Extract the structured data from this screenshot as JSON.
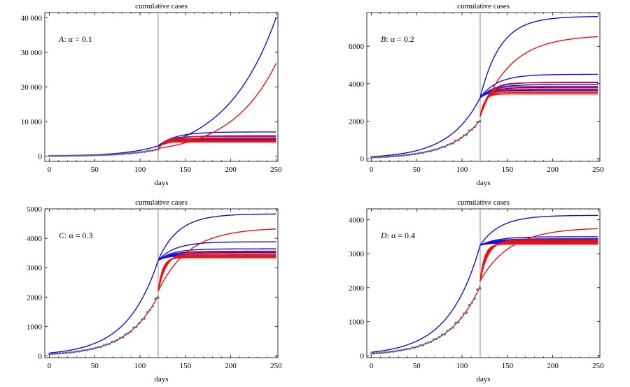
{
  "chart_data": [
    {
      "type": "line",
      "title": "cumulative cases",
      "xlabel": "days",
      "ylabel": "",
      "panel_letter": "A",
      "param_label": ":   α = 0.1",
      "xlim": [
        -5,
        252
      ],
      "ylim": [
        -1500,
        41500
      ],
      "xticks": [
        0,
        50,
        100,
        150,
        200,
        250
      ],
      "yticks": [
        0,
        10000,
        20000,
        30000,
        40000
      ],
      "ytick_labels": [
        "0",
        "10 000",
        "20 000",
        "30 000",
        "40 000"
      ],
      "vertical_line_x": 120,
      "colors": {
        "blue": "#1010dd",
        "red": "#ee1111",
        "points": "#5a6a9a",
        "vline": "#888888"
      },
      "fit_max": 2000,
      "ic_blue": 3000,
      "ic_red": 2250,
      "blue_finals": [
        40000,
        7000,
        5900,
        5300,
        4900,
        4600,
        4400
      ],
      "red_finals": [
        26800,
        5700,
        5100,
        4700,
        4400,
        4200,
        4100
      ],
      "blue_growth": "exp"
    },
    {
      "type": "line",
      "title": "cumulative cases",
      "xlabel": "days",
      "ylabel": "",
      "panel_letter": "B",
      "param_label": ":   α = 0.2",
      "xlim": [
        -5,
        252
      ],
      "ylim": [
        -150,
        7800
      ],
      "xticks": [
        0,
        50,
        100,
        150,
        200,
        250
      ],
      "yticks": [
        0,
        2000,
        4000,
        6000
      ],
      "ytick_labels": [
        "0",
        "2000",
        "4000",
        "6000"
      ],
      "vertical_line_x": 120,
      "colors": {
        "blue": "#1010dd",
        "red": "#ee1111",
        "points": "#5a6a9a",
        "vline": "#888888"
      },
      "fit_max": 2050,
      "ic_blue": 3250,
      "ic_red": 2250,
      "blue_finals": [
        7600,
        4500,
        4080,
        3950,
        3800,
        3720,
        3650
      ],
      "red_finals": [
        6600,
        4050,
        3850,
        3700,
        3600,
        3520,
        3450
      ],
      "blue_growth": "sat"
    },
    {
      "type": "line",
      "title": "cumulative cases",
      "xlabel": "days",
      "ylabel": "",
      "panel_letter": "C",
      "param_label": ":   α = 0.3",
      "xlim": [
        -5,
        252
      ],
      "ylim": [
        -60,
        5000
      ],
      "xticks": [
        0,
        50,
        100,
        150,
        200,
        250
      ],
      "yticks": [
        0,
        1000,
        2000,
        3000,
        4000,
        5000
      ],
      "ytick_labels": [
        "0",
        "1000",
        "2000",
        "3000",
        "4000",
        "5000"
      ],
      "vertical_line_x": 120,
      "colors": {
        "blue": "#1010dd",
        "red": "#ee1111",
        "points": "#5a6a9a",
        "vline": "#888888"
      },
      "fit_max": 2050,
      "ic_blue": 3250,
      "ic_red": 2200,
      "blue_finals": [
        4830,
        3880,
        3640,
        3560,
        3510,
        3460,
        3420
      ],
      "red_finals": [
        4360,
        3540,
        3460,
        3420,
        3380,
        3360,
        3340
      ],
      "blue_growth": "sat"
    },
    {
      "type": "line",
      "title": "cumulative cases",
      "xlabel": "days",
      "ylabel": "",
      "panel_letter": "D",
      "param_label": ":   α = 0.4",
      "xlim": [
        -5,
        252
      ],
      "ylim": [
        -60,
        4320
      ],
      "xticks": [
        0,
        50,
        100,
        150,
        200,
        250
      ],
      "yticks": [
        0,
        1000,
        2000,
        3000,
        4000
      ],
      "ytick_labels": [
        "0",
        "1000",
        "2000",
        "3000",
        "4000"
      ],
      "vertical_line_x": 120,
      "colors": {
        "blue": "#1010dd",
        "red": "#ee1111",
        "points": "#5a6a9a",
        "vline": "#888888"
      },
      "fit_max": 2050,
      "ic_blue": 3250,
      "ic_red": 2200,
      "blue_finals": [
        4130,
        3500,
        3440,
        3400,
        3370,
        3340,
        3320
      ],
      "red_finals": [
        3770,
        3420,
        3380,
        3350,
        3320,
        3300,
        3280
      ],
      "blue_growth": "sat"
    }
  ]
}
